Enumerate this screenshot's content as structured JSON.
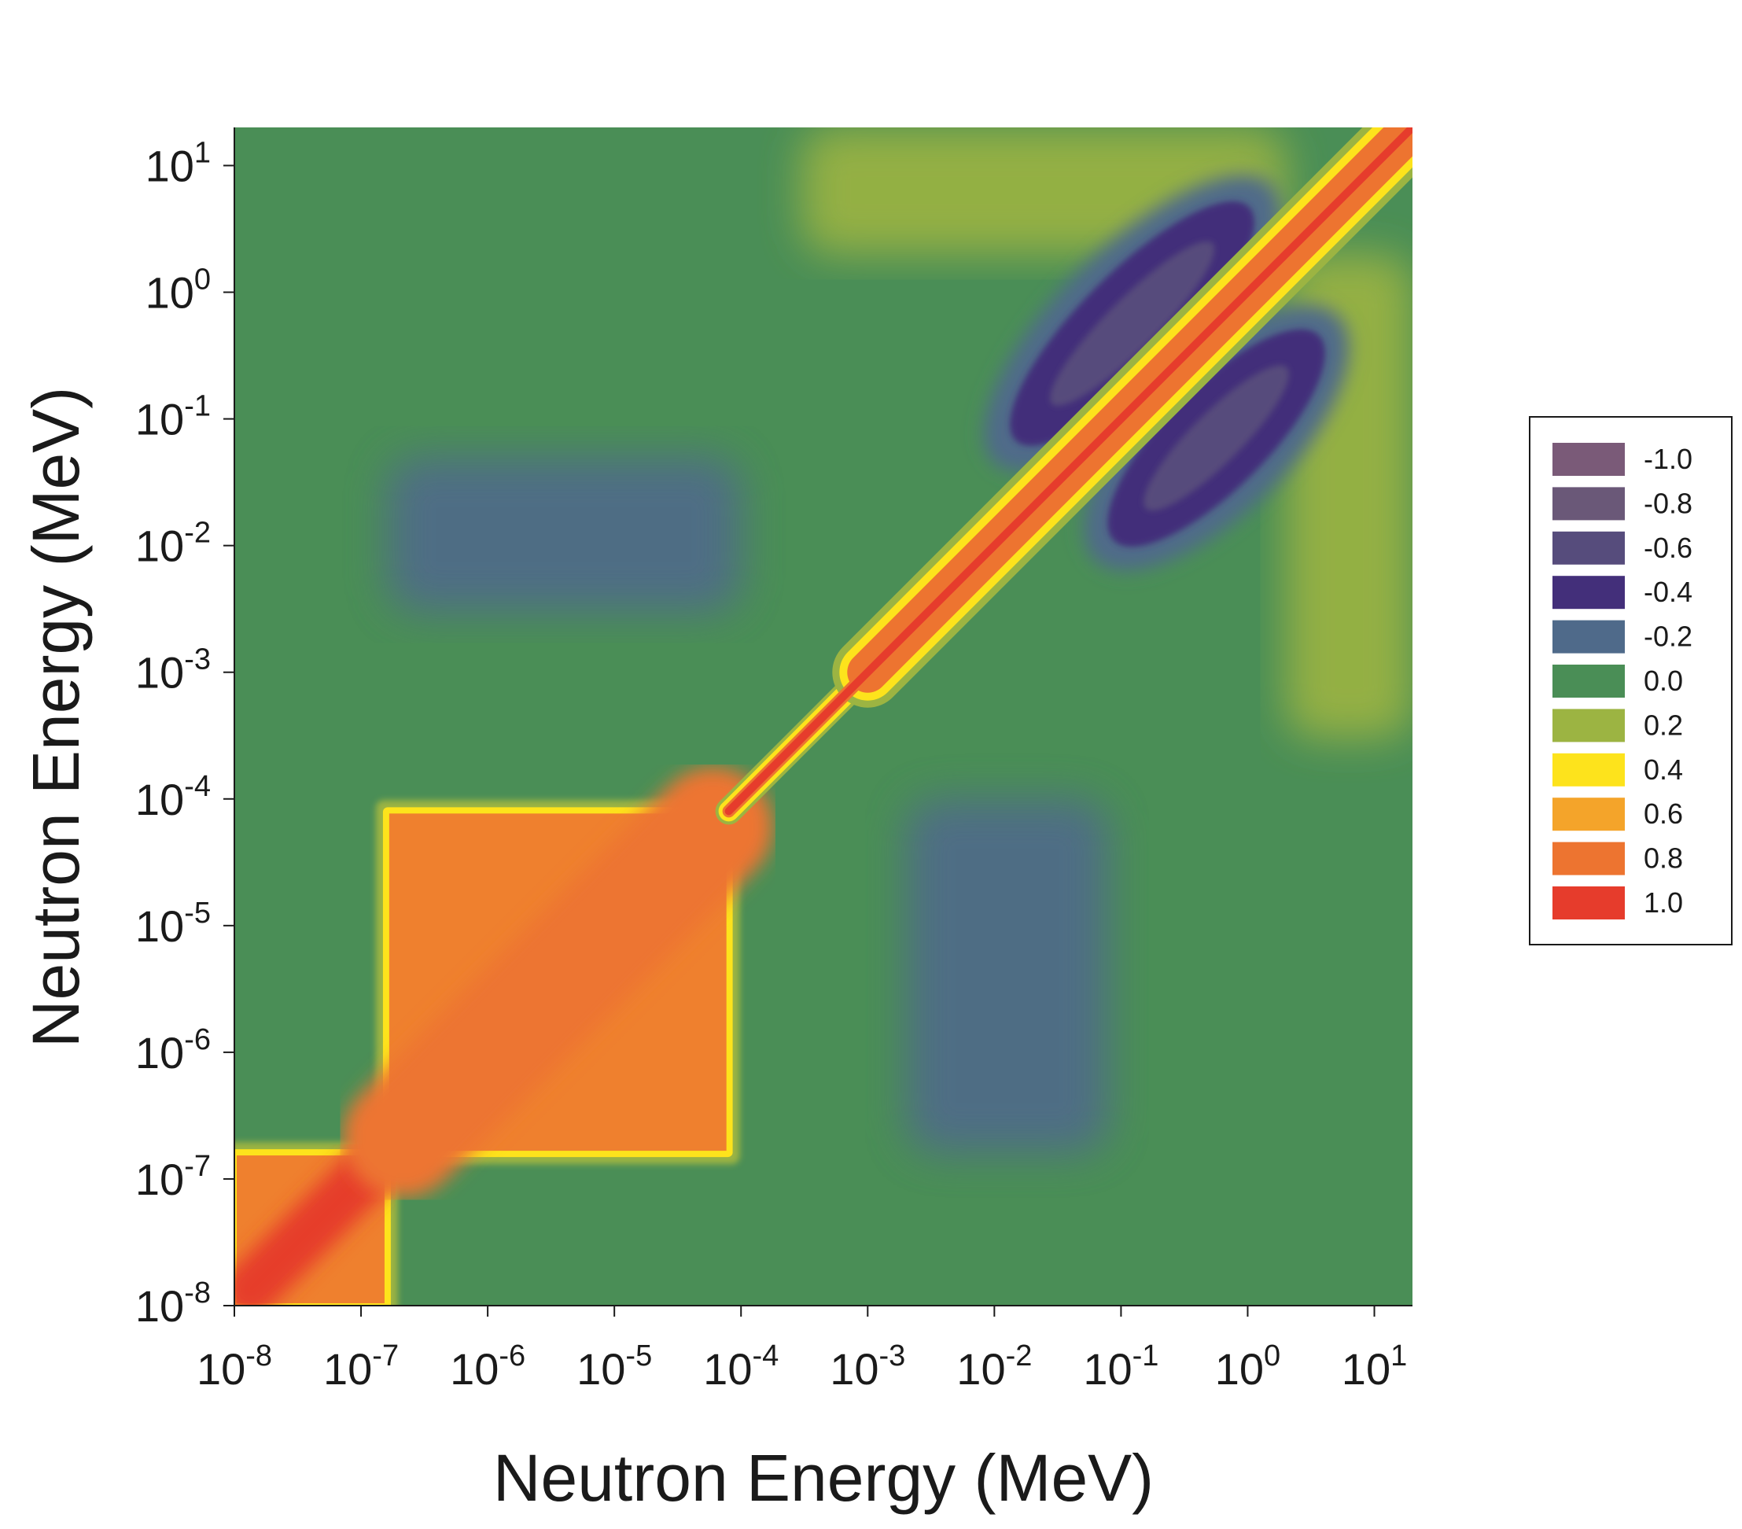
{
  "chart_data": {
    "type": "heatmap",
    "title": "",
    "xlabel": "Neutron Energy (MeV)",
    "ylabel": "Neutron Energy (MeV)",
    "x_scale": "log",
    "y_scale": "log",
    "xlim": [
      1e-08,
      20
    ],
    "ylim": [
      1e-08,
      20
    ],
    "x_ticks": [
      {
        "value": 1e-08,
        "base": "10",
        "exp": "-8"
      },
      {
        "value": 1e-07,
        "base": "10",
        "exp": "-7"
      },
      {
        "value": 1e-06,
        "base": "10",
        "exp": "-6"
      },
      {
        "value": 1e-05,
        "base": "10",
        "exp": "-5"
      },
      {
        "value": 0.0001,
        "base": "10",
        "exp": "-4"
      },
      {
        "value": 0.001,
        "base": "10",
        "exp": "-3"
      },
      {
        "value": 0.01,
        "base": "10",
        "exp": "-2"
      },
      {
        "value": 0.1,
        "base": "10",
        "exp": "-1"
      },
      {
        "value": 1,
        "base": "10",
        "exp": "0"
      },
      {
        "value": 10,
        "base": "10",
        "exp": "1"
      }
    ],
    "y_ticks": [
      {
        "value": 1e-08,
        "base": "10",
        "exp": "-8"
      },
      {
        "value": 1e-07,
        "base": "10",
        "exp": "-7"
      },
      {
        "value": 1e-06,
        "base": "10",
        "exp": "-6"
      },
      {
        "value": 1e-05,
        "base": "10",
        "exp": "-5"
      },
      {
        "value": 0.0001,
        "base": "10",
        "exp": "-4"
      },
      {
        "value": 0.001,
        "base": "10",
        "exp": "-3"
      },
      {
        "value": 0.01,
        "base": "10",
        "exp": "-2"
      },
      {
        "value": 0.1,
        "base": "10",
        "exp": "-1"
      },
      {
        "value": 1,
        "base": "10",
        "exp": "0"
      },
      {
        "value": 10,
        "base": "10",
        "exp": "1"
      }
    ],
    "legend_position": "right",
    "legend": [
      {
        "label": "-1.0",
        "value": -1.0,
        "color": "#7a5a78"
      },
      {
        "label": "-0.8",
        "value": -0.8,
        "color": "#6a5878"
      },
      {
        "label": "-0.6",
        "value": -0.6,
        "color": "#564c7c"
      },
      {
        "label": "-0.4",
        "value": -0.4,
        "color": "#432f7a"
      },
      {
        "label": "-0.2",
        "value": -0.2,
        "color": "#4f6a8a"
      },
      {
        "label": "0.0",
        "value": 0.0,
        "color": "#4a8e56"
      },
      {
        "label": "0.2",
        "value": 0.2,
        "color": "#9cb442"
      },
      {
        "label": "0.4",
        "value": 0.4,
        "color": "#fde31c"
      },
      {
        "label": "0.6",
        "value": 0.6,
        "color": "#f4a42a"
      },
      {
        "label": "0.8",
        "value": 0.8,
        "color": "#ed7430"
      },
      {
        "label": "1.0",
        "value": 1.0,
        "color": "#e63c2c"
      }
    ],
    "regions": [
      {
        "description": "thermal block",
        "x_range": [
          1e-08,
          1.6e-07
        ],
        "y_range": [
          1e-08,
          1.6e-07
        ],
        "value": 1.0
      },
      {
        "description": "epithermal block",
        "x_range": [
          1.6e-07,
          8e-05
        ],
        "y_range": [
          1.6e-07,
          8e-05
        ],
        "value": 0.9
      },
      {
        "description": "diagonal band",
        "x_range": [
          8e-05,
          20
        ],
        "y_range": [
          8e-05,
          20
        ],
        "value": 1.0
      },
      {
        "description": "anti-correlation lobe above diagonal",
        "x_range": [
          0.005,
          3
        ],
        "y_range": [
          0.08,
          4
        ],
        "value": -0.5
      },
      {
        "description": "anti-correlation lobe below diagonal",
        "x_range": [
          0.08,
          4
        ],
        "y_range": [
          0.005,
          1
        ],
        "value": -0.5
      },
      {
        "description": "weak negative band",
        "x_range": [
          1.6e-07,
          0.0001
        ],
        "y_range": [
          0.003,
          0.05
        ],
        "value": -0.15
      },
      {
        "description": "weak negative column",
        "x_range": [
          0.002,
          0.08
        ],
        "y_range": [
          1.6e-07,
          0.0001
        ],
        "value": -0.15
      },
      {
        "description": "weak positive patch",
        "x_range": [
          0.0003,
          2
        ],
        "y_range": [
          2,
          20
        ],
        "value": 0.15
      },
      {
        "description": "weak positive patch",
        "x_range": [
          2,
          20
        ],
        "y_range": [
          0.0003,
          2
        ],
        "value": 0.15
      }
    ]
  }
}
